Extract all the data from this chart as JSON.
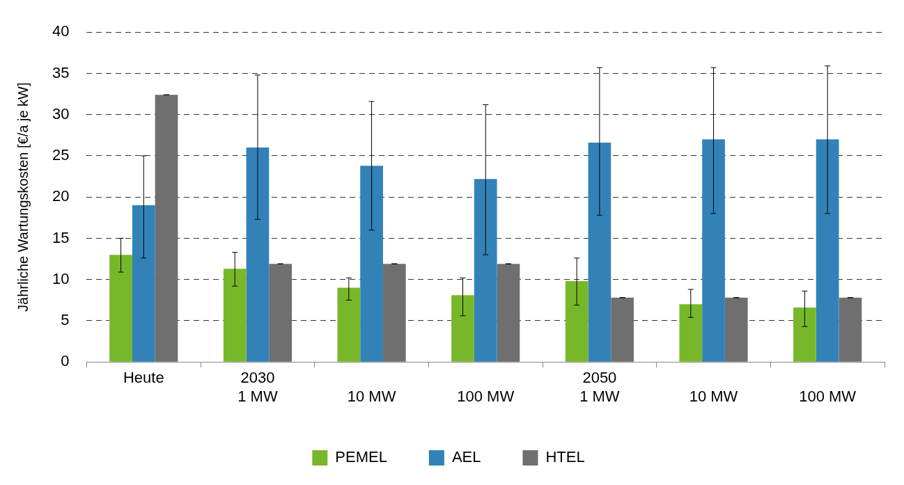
{
  "chart_data": {
    "type": "bar",
    "ylabel": "Jährliche Wartungskosten [€/a je kW]",
    "categories": [
      "Heute",
      "2030\n1 MW",
      "\n10 MW",
      "\n100 MW",
      "2050\n1 MW",
      "\n10 MW",
      "\n100 MW"
    ],
    "series": [
      {
        "name": "PEMEL",
        "color": "#77b82a",
        "values": [
          13,
          11.3,
          9,
          8.1,
          9.8,
          7,
          6.6
        ],
        "errors": [
          [
            10.9,
            15
          ],
          [
            9.2,
            13.3
          ],
          [
            7.5,
            10.2
          ],
          [
            5.6,
            10.2
          ],
          [
            6.9,
            12.6
          ],
          [
            5.4,
            8.8
          ],
          [
            4.3,
            8.6
          ]
        ]
      },
      {
        "name": "AEL",
        "color": "#3282b8",
        "values": [
          19,
          26,
          23.8,
          22.2,
          26.6,
          27,
          27
        ],
        "errors": [
          [
            12.6,
            25
          ],
          [
            17.3,
            34.8
          ],
          [
            16,
            31.6
          ],
          [
            13,
            31.2
          ],
          [
            17.8,
            35.7
          ],
          [
            18,
            35.7
          ],
          [
            18,
            35.9
          ]
        ]
      },
      {
        "name": "HTEL",
        "color": "#6e6f6e",
        "values": [
          32.4,
          11.9,
          11.9,
          11.9,
          7.8,
          7.8,
          7.8
        ],
        "errors": [
          0,
          0,
          0,
          0,
          0,
          0,
          0
        ]
      }
    ],
    "ylim": [
      0,
      40
    ],
    "yticks": [
      0,
      5,
      10,
      15,
      20,
      25,
      30,
      35,
      40
    ],
    "grid": "y",
    "line_style": "dashed",
    "legend": "bottom"
  }
}
